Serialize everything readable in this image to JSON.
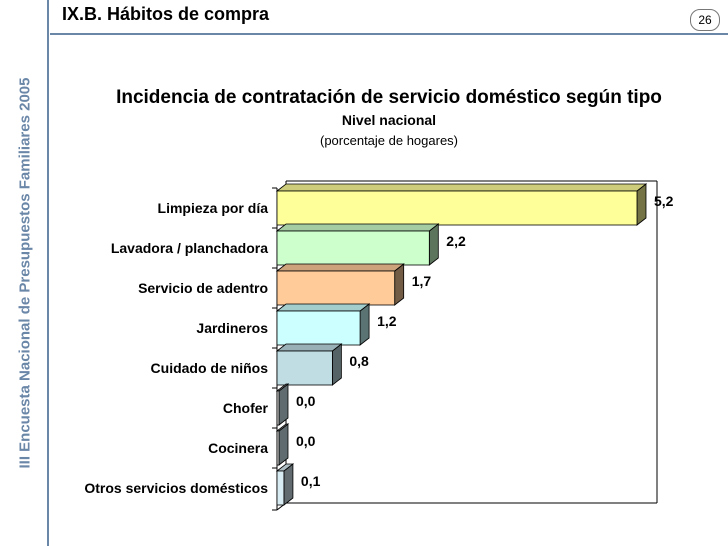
{
  "sidebar": {
    "vertical_title": "III Encuesta Nacional de Presupuestos Familiares 2005"
  },
  "header": {
    "section_title": "IX.B.  Hábitos de compra",
    "page_number": "26"
  },
  "chart_data": {
    "type": "bar",
    "orientation": "horizontal",
    "style": "3d",
    "title": "Incidencia de contratación de servicio doméstico según tipo",
    "subtitle": "Nivel nacional",
    "note": "(porcentaje de hogares)",
    "categories": [
      "Limpieza por día",
      "Lavadora / planchadora",
      "Servicio de adentro",
      "Jardineros",
      "Cuidado de niños",
      "Chofer",
      "Cocinera",
      "Otros servicios domésticos"
    ],
    "values": [
      5.2,
      2.2,
      1.7,
      1.2,
      0.8,
      0.0,
      0.0,
      0.1
    ],
    "value_labels": [
      "5,2",
      "2,2",
      "1,7",
      "1,2",
      "0,8",
      "0,0",
      "0,0",
      "0,1"
    ],
    "bar_colors": [
      "#ffff99",
      "#ccffcc",
      "#ffcc99",
      "#ccffff",
      "#bfdde3",
      "#dddddd",
      "#dddddd",
      "#d8ecf4"
    ],
    "xlim": [
      0,
      5.5
    ],
    "grid": false,
    "legend": "none"
  }
}
